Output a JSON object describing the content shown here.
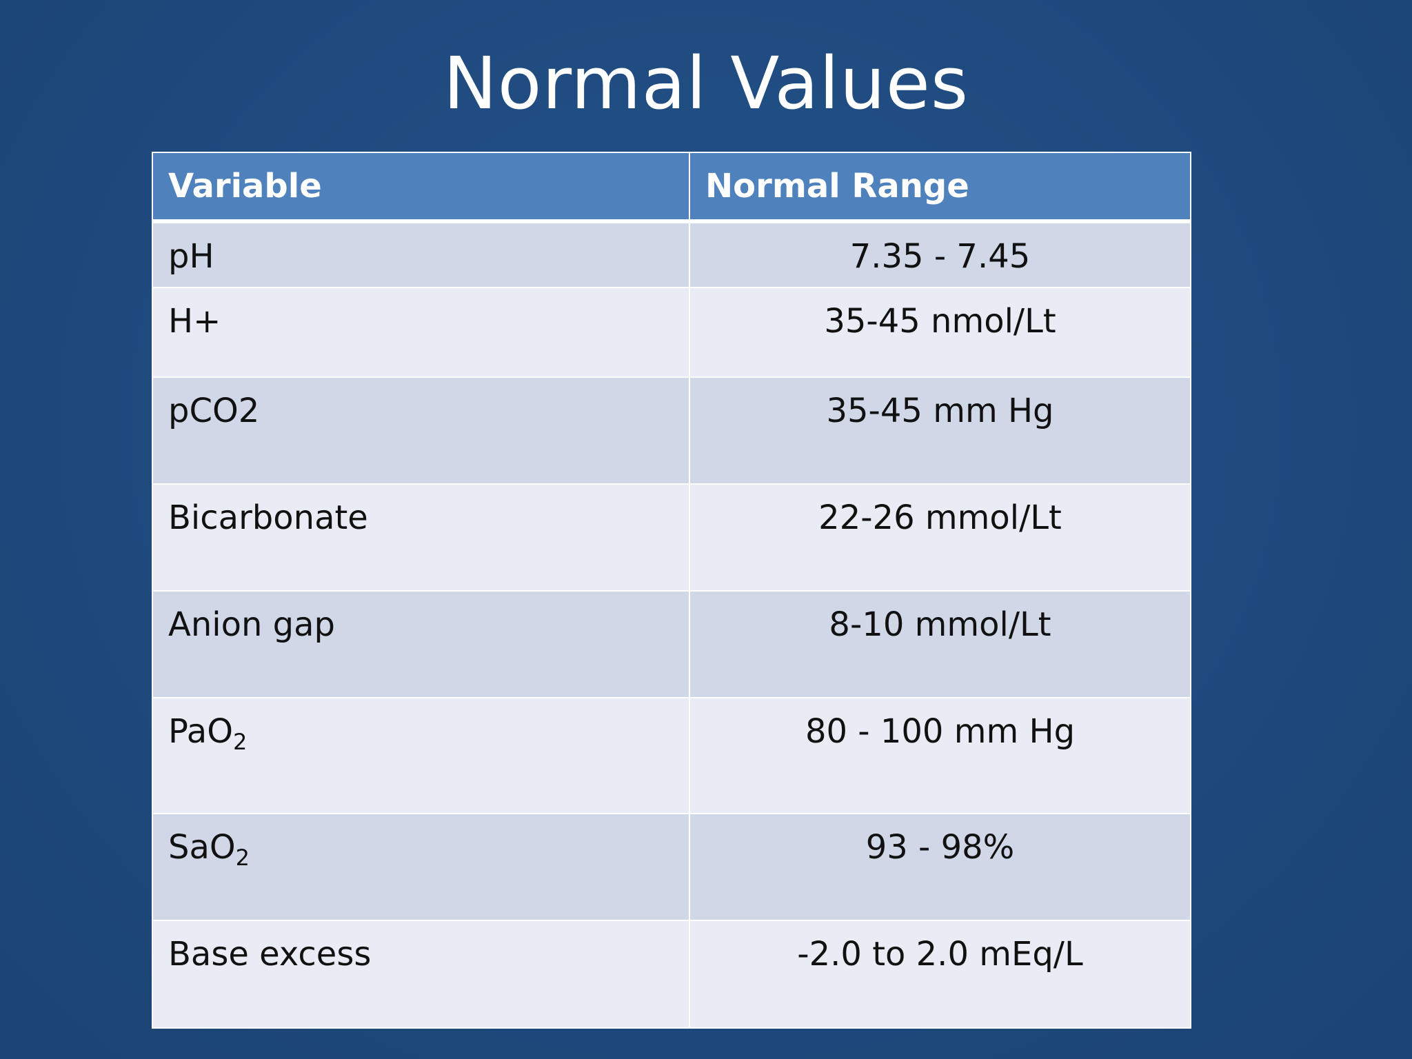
{
  "slide": {
    "title": "Normal Values"
  },
  "table": {
    "headers": [
      "Variable",
      "Normal Range"
    ],
    "rows": [
      {
        "variable": "pH",
        "sub": "",
        "range": "7.35 - 7.45"
      },
      {
        "variable": "H+",
        "sub": "",
        "range": "35-45 nmol/Lt"
      },
      {
        "variable": "pCO2",
        "sub": "",
        "range": "35-45 mm Hg"
      },
      {
        "variable": "Bicarbonate",
        "sub": "",
        "range": "22-26 mmol/Lt"
      },
      {
        "variable": "Anion gap",
        "sub": "",
        "range": "8-10 mmol/Lt"
      },
      {
        "variable": "PaO",
        "sub": "2",
        "range": "80 - 100 mm Hg"
      },
      {
        "variable": "SaO",
        "sub": "2",
        "range": "93 - 98%"
      },
      {
        "variable": "Base excess",
        "sub": "",
        "range": "-2.0 to 2.0 mEq/L"
      }
    ]
  },
  "colors": {
    "background": "#1f497d",
    "header": "#4f81bd",
    "row_shaded": "#d0d8e8",
    "row_light": "#e9ecf4",
    "title_text": "#ffffff"
  }
}
